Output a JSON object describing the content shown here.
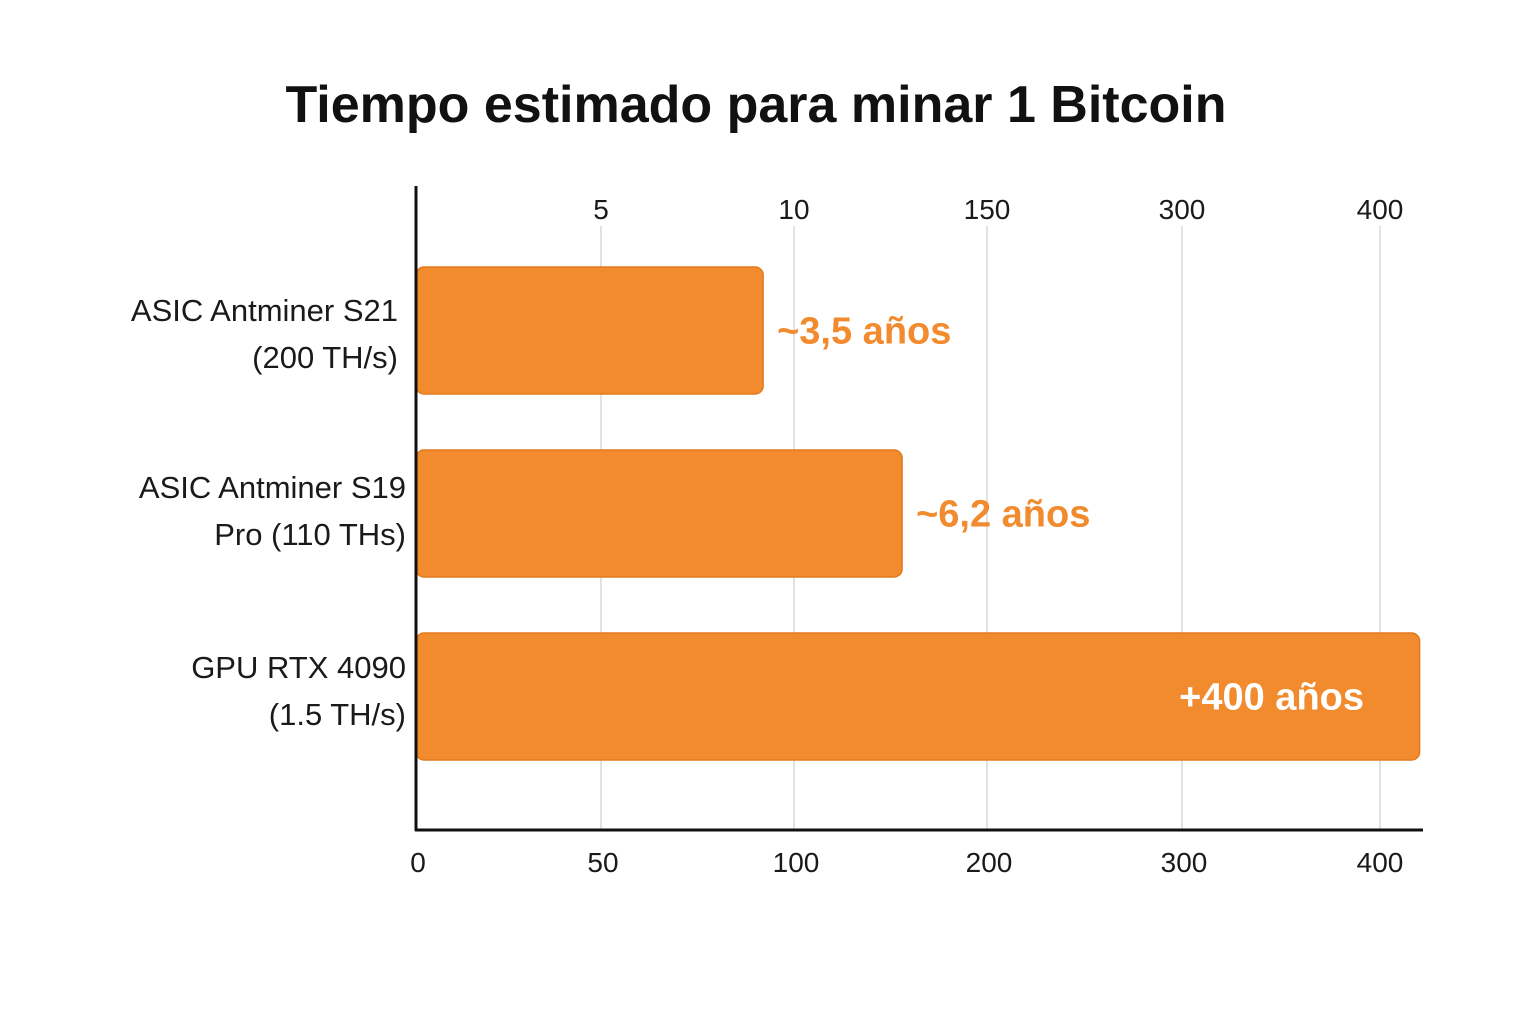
{
  "chart_data": {
    "type": "bar",
    "orientation": "horizontal",
    "title": "Tiempo estimado para minar 1 Bitcoin",
    "xlabel": "",
    "ylabel": "",
    "categories": [
      [
        "ASIC Antminer S21",
        "(200 TH/s)"
      ],
      [
        "ASIC Antminer S19",
        "Pro (110 THs)"
      ],
      [
        "GPU RTX 4090",
        "(1.5 TH/s)"
      ]
    ],
    "values": [
      92,
      156,
      420
    ],
    "data_labels": [
      "~3,5 años",
      "~6,2 años",
      "+400 años"
    ],
    "x_ticks_bottom": [
      "0",
      "50",
      "100",
      "200",
      "300",
      "400"
    ],
    "x_ticks_top": [
      "5",
      "10",
      "150",
      "300",
      "400"
    ],
    "grid": true,
    "legend": "none",
    "colors": {
      "bar": "#f28a2e",
      "bar_border": "#e27a1e",
      "label_outside": "#f28a2e",
      "label_inside": "#ffffff",
      "grid": "#e2e2e2",
      "axis": "#111111"
    }
  }
}
